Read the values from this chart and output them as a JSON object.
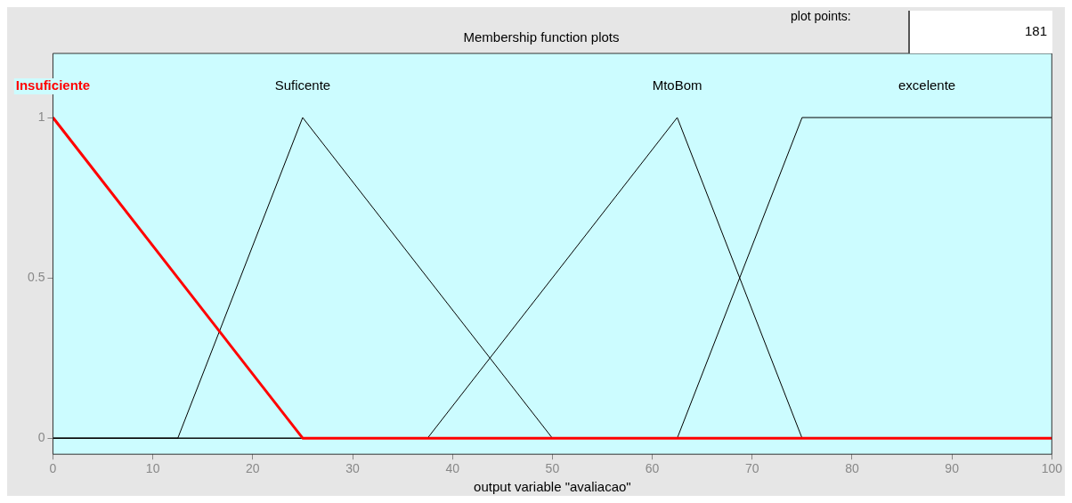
{
  "chart_data": {
    "type": "line",
    "title": "Membership function plots",
    "xlabel": "output variable \"avaliacao\"",
    "xlim": [
      0,
      100
    ],
    "xticks": [
      0,
      10,
      20,
      30,
      40,
      50,
      60,
      70,
      80,
      90,
      100
    ],
    "ylim": [
      -0.05,
      1.2
    ],
    "yticks": [
      0,
      0.5,
      1
    ],
    "grid": false,
    "legend": false,
    "series": [
      {
        "name": "Insuficiente",
        "color": "#ff0000",
        "x": [
          0,
          25,
          100
        ],
        "values": [
          1,
          0,
          0
        ]
      },
      {
        "name": "Suficente",
        "color": "#000000",
        "x": [
          0,
          12.5,
          25,
          50,
          100
        ],
        "values": [
          0,
          0,
          1,
          0,
          0
        ]
      },
      {
        "name": "MtoBom",
        "color": "#000000",
        "x": [
          0,
          37.5,
          62.5,
          75,
          100
        ],
        "values": [
          0,
          0,
          1,
          0,
          0
        ]
      },
      {
        "name": "excelente",
        "color": "#000000",
        "x": [
          0,
          62.5,
          75,
          100
        ],
        "values": [
          0,
          0,
          1,
          1
        ]
      }
    ],
    "annotations": [
      "plot points:",
      "181"
    ]
  }
}
